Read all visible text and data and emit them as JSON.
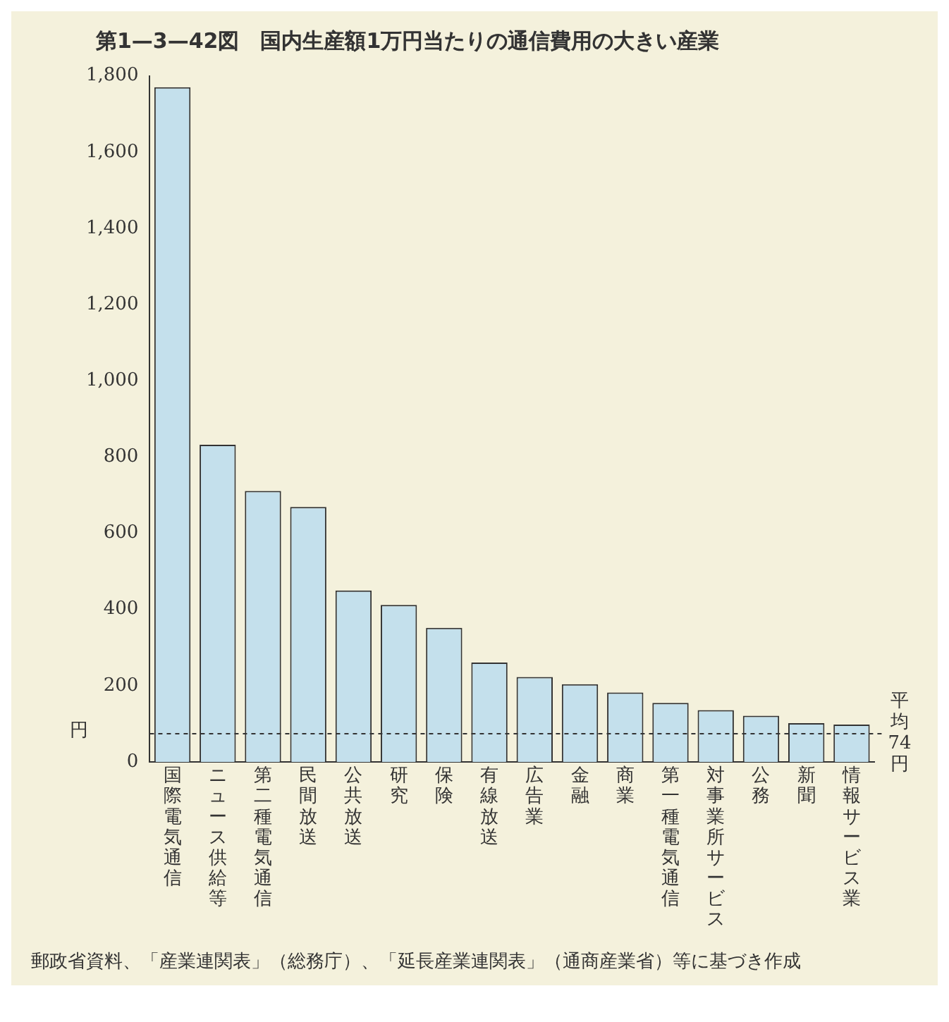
{
  "chart_data": {
    "type": "bar",
    "title": "第1—3—42図　国内生産額1万円当たりの通信費用の大きい産業",
    "ylabel": "円",
    "categories": [
      "国際電気通信",
      "ニュース供給等",
      "第二種電気通信",
      "民間放送",
      "公共放送",
      "研究",
      "保険",
      "有線放送",
      "広告業",
      "金融",
      "商業",
      "第一種電気通信",
      "対事業所サービス",
      "公務",
      "新聞",
      "情報サービス業"
    ],
    "values": [
      1770,
      832,
      711,
      669,
      450,
      412,
      352,
      261,
      223,
      204,
      182,
      155,
      136,
      121,
      102,
      98
    ],
    "color": "#c4e0ec",
    "ylim": [
      0,
      1800
    ],
    "yticks": [
      0,
      200,
      400,
      600,
      800,
      {
        "value": 1000,
        "label": "1,000"
      },
      {
        "value": 1200,
        "label": "1,200"
      },
      {
        "value": 1400,
        "label": "1,400"
      },
      {
        "value": 1600,
        "label": "1,600"
      },
      {
        "value": 1800,
        "label": "1,800"
      }
    ],
    "ref_lines": [
      {
        "axis": "y",
        "value": 74,
        "label": "平均74円",
        "line_style": "dashed"
      }
    ],
    "annotations": [
      "郵政省資料、「産業連関表」（総務庁）、「延長産業連関表」（通商産業省）等に基づき作成"
    ],
    "grid": false,
    "legend": false
  }
}
